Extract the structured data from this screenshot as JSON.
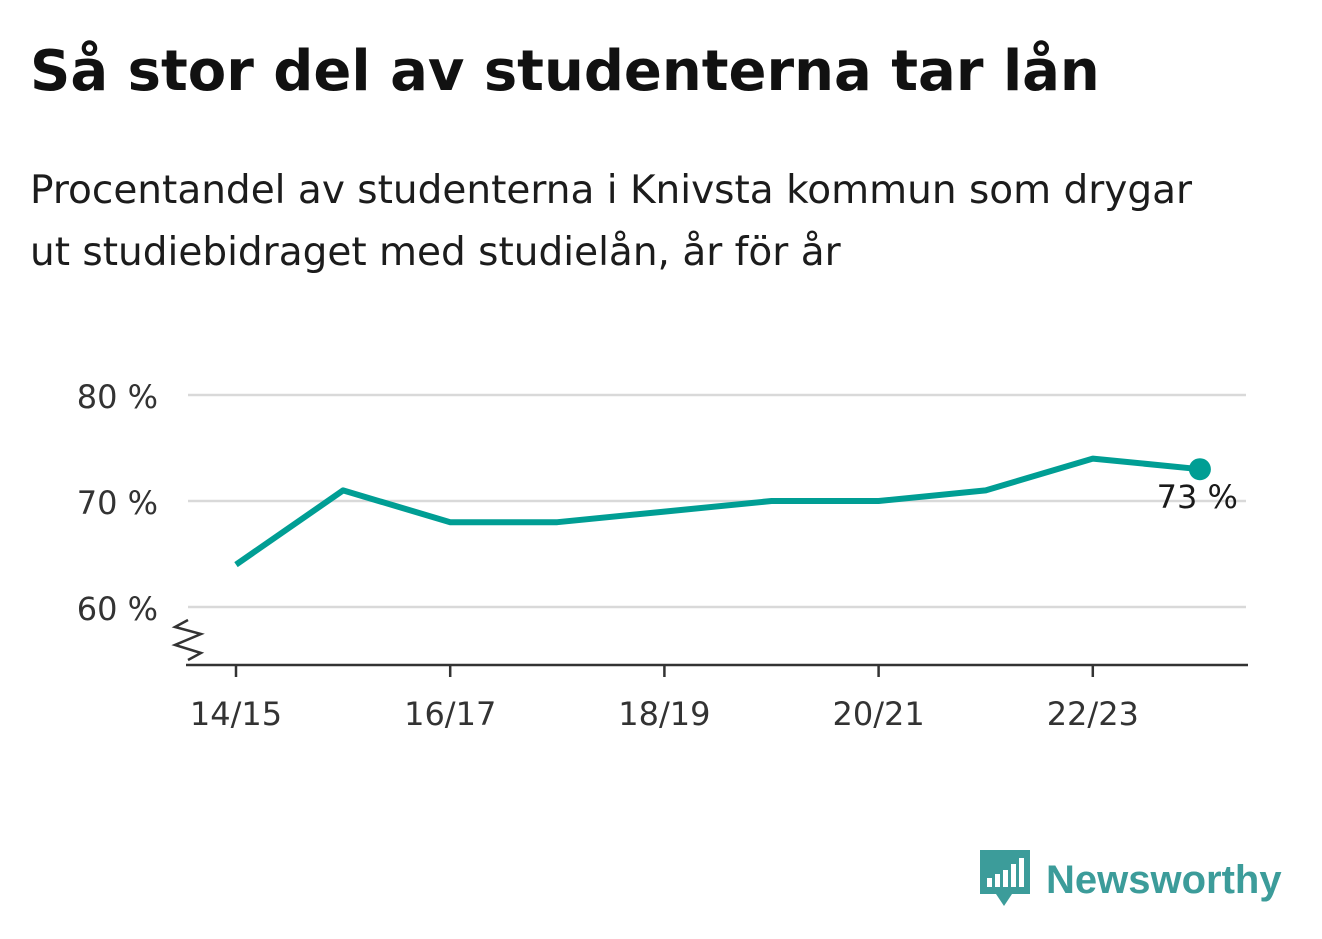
{
  "colors": {
    "line": "#009e94",
    "grid": "#d9d9d9",
    "axis": "#333333",
    "text": "#222222",
    "brand": "#3c9c9a"
  },
  "branding": {
    "name": "Newsworthy",
    "icon": "bar-chart-speech-bubble-icon"
  },
  "chart_data": {
    "type": "line",
    "title": "Så stor del av studenterna tar lån",
    "subtitle": "Procentandel av studenterna i Knivsta kommun som drygar ut studiebidraget med studielån, år för år",
    "xlabel": "",
    "ylabel": "",
    "categories": [
      "14/15",
      "15/16",
      "16/17",
      "17/18",
      "18/19",
      "19/20",
      "20/21",
      "21/22",
      "22/23",
      "23/24"
    ],
    "x_tick_labels": [
      "14/15",
      "16/17",
      "18/19",
      "20/21",
      "22/23"
    ],
    "y_ticks": [
      60,
      70,
      80
    ],
    "y_tick_suffix": " %",
    "ylim": [
      54.5,
      80
    ],
    "y_axis_break": true,
    "grid": true,
    "series": [
      {
        "values": [
          64,
          71,
          68,
          68,
          69,
          70,
          70,
          71,
          74,
          73
        ]
      }
    ],
    "end_label": "73 %"
  }
}
